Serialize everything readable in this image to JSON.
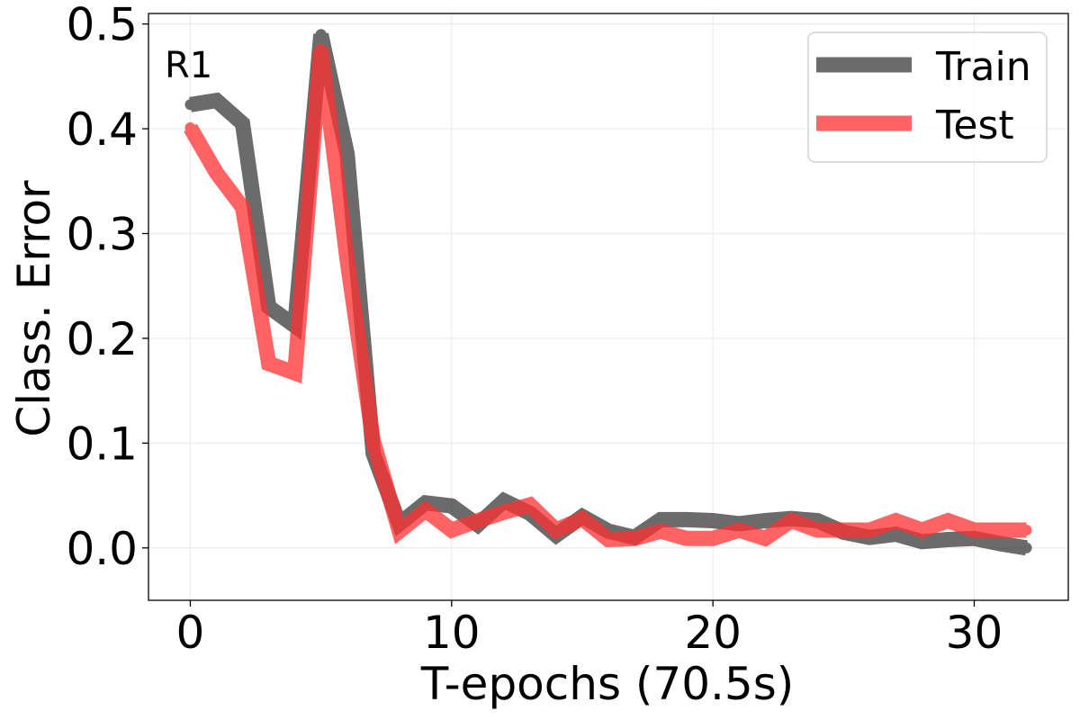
{
  "chart_data": {
    "type": "line",
    "annotation": "R1",
    "xlabel": "T-epochs (70.5s)",
    "ylabel": "Class. Error",
    "xlim": [
      -1.6,
      33.6
    ],
    "ylim": [
      -0.05,
      0.51
    ],
    "xticks": [
      0,
      10,
      20,
      30
    ],
    "yticks": [
      0.0,
      0.1,
      0.2,
      0.3,
      0.4,
      0.5
    ],
    "ytick_labels": [
      "0.0",
      "0.1",
      "0.2",
      "0.3",
      "0.4",
      "0.5"
    ],
    "grid": true,
    "legend_position": "top-right",
    "x": [
      0,
      1,
      2,
      3,
      4,
      5,
      6,
      7,
      8,
      9,
      10,
      11,
      12,
      13,
      14,
      15,
      16,
      17,
      18,
      19,
      20,
      21,
      22,
      23,
      24,
      25,
      26,
      27,
      28,
      29,
      30,
      31,
      32
    ],
    "series": [
      {
        "name": "Train",
        "color": "#3a3a3a",
        "values": [
          0.423,
          0.427,
          0.405,
          0.23,
          0.212,
          0.49,
          0.376,
          0.09,
          0.023,
          0.043,
          0.04,
          0.022,
          0.045,
          0.033,
          0.012,
          0.03,
          0.016,
          0.01,
          0.027,
          0.027,
          0.026,
          0.023,
          0.026,
          0.028,
          0.026,
          0.015,
          0.01,
          0.013,
          0.006,
          0.008,
          0.009,
          0.004,
          0.0
        ]
      },
      {
        "name": "Test",
        "color": "#ff3030",
        "values": [
          0.401,
          0.358,
          0.325,
          0.176,
          0.167,
          0.476,
          0.275,
          0.102,
          0.016,
          0.036,
          0.017,
          0.026,
          0.034,
          0.041,
          0.017,
          0.028,
          0.008,
          0.009,
          0.016,
          0.009,
          0.009,
          0.017,
          0.009,
          0.026,
          0.017,
          0.017,
          0.017,
          0.026,
          0.017,
          0.026,
          0.017,
          0.017,
          0.017
        ]
      }
    ]
  }
}
